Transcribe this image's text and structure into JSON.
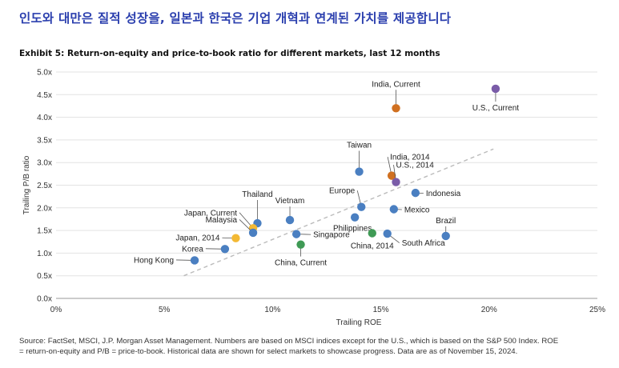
{
  "headline": "인도와 대만은 질적 성장을, 일본과 한국은 기업 개혁과 연계된 가치를 제공합니다",
  "exhibit_title": "Exhibit 5: Return-on-equity and price-to-book ratio for different markets, last 12 months",
  "source_line1": "Source: FactSet, MSCI, J.P. Morgan Asset Management. Numbers are based on MSCI indices except for the U.S., which is based on the S&P 500 Index.  ROE",
  "source_line2": "= return-on-equity and P/B = price-to-book. Historical data are shown for select markets to showcase progress. Data are as of November 15, 2024.",
  "colors": {
    "blue": "#4a7fc1",
    "orange": "#d07020",
    "purple": "#7a5ca8",
    "green": "#3f9a55",
    "yellow": "#f3b934",
    "trend": "#bbbbbb"
  },
  "chart_data": {
    "type": "scatter",
    "xlabel": "Trailing ROE",
    "ylabel": "Trailing P/B ratio",
    "xlim": [
      0,
      25
    ],
    "ylim": [
      0,
      5
    ],
    "x_ticks": [
      0,
      5,
      10,
      15,
      20,
      25
    ],
    "y_ticks": [
      0,
      0.5,
      1,
      1.5,
      2,
      2.5,
      3,
      3.5,
      4,
      4.5,
      5
    ],
    "x_tick_labels": [
      "0%",
      "5%",
      "10%",
      "15%",
      "20%",
      "25%"
    ],
    "y_tick_labels": [
      "0.0x",
      "0.5x",
      "1.0x",
      "1.5x",
      "2.0x",
      "2.5x",
      "3.0x",
      "3.5x",
      "4.0x",
      "4.5x",
      "5.0x"
    ],
    "trendline": {
      "x": [
        5.9,
        20.2
      ],
      "y": [
        0.5,
        3.3
      ],
      "style": "dashed"
    },
    "points": [
      {
        "label": "India, Current",
        "x": 15.7,
        "y": 4.2,
        "color": "orange"
      },
      {
        "label": "U.S., Current",
        "x": 20.3,
        "y": 4.63,
        "color": "purple"
      },
      {
        "label": "Taiwan",
        "x": 14.0,
        "y": 2.8,
        "color": "blue"
      },
      {
        "label": "India, 2014",
        "x": 15.5,
        "y": 2.71,
        "color": "orange"
      },
      {
        "label": "U.S., 2014",
        "x": 15.7,
        "y": 2.57,
        "color": "purple"
      },
      {
        "label": "Indonesia",
        "x": 16.6,
        "y": 2.33,
        "color": "blue"
      },
      {
        "label": "Europe",
        "x": 14.1,
        "y": 2.02,
        "color": "blue"
      },
      {
        "label": "Mexico",
        "x": 15.6,
        "y": 1.97,
        "color": "blue"
      },
      {
        "label": "Brazil",
        "x": 18.0,
        "y": 1.38,
        "color": "blue"
      },
      {
        "label": "Philippines",
        "x": 13.8,
        "y": 1.79,
        "color": "blue"
      },
      {
        "label": "Vietnam",
        "x": 10.8,
        "y": 1.73,
        "color": "blue"
      },
      {
        "label": "Thailand",
        "x": 9.3,
        "y": 1.66,
        "color": "blue"
      },
      {
        "label": "Japan, Current",
        "x": 9.1,
        "y": 1.55,
        "color": "yellow"
      },
      {
        "label": "Malaysia",
        "x": 9.1,
        "y": 1.45,
        "color": "blue"
      },
      {
        "label": "Japan, 2014",
        "x": 8.3,
        "y": 1.33,
        "color": "yellow"
      },
      {
        "label": "Singapore",
        "x": 11.1,
        "y": 1.42,
        "color": "blue"
      },
      {
        "label": "China, Current",
        "x": 11.3,
        "y": 1.19,
        "color": "green"
      },
      {
        "label": "China, 2014",
        "x": 14.6,
        "y": 1.44,
        "color": "green"
      },
      {
        "label": "South Africa",
        "x": 15.3,
        "y": 1.43,
        "color": "blue"
      },
      {
        "label": "Korea",
        "x": 7.8,
        "y": 1.09,
        "color": "blue"
      },
      {
        "label": "Hong Kong",
        "x": 6.4,
        "y": 0.84,
        "color": "blue"
      }
    ]
  }
}
